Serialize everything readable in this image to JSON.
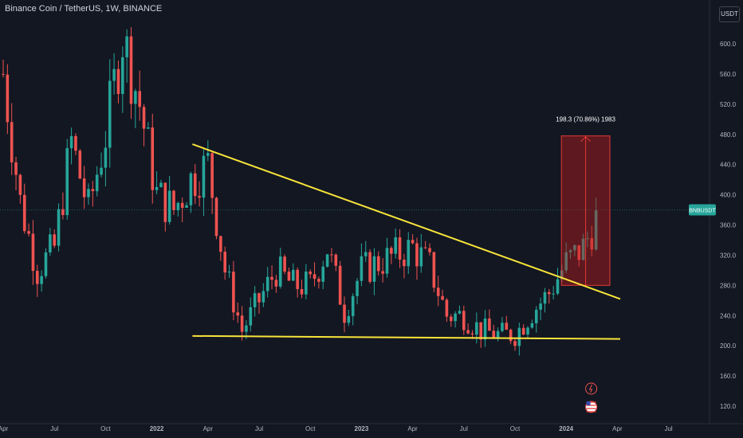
{
  "header": {
    "symbol_title": "Binance Coin / TetherUS, 1W, BINANCE",
    "currency_button": "USDT"
  },
  "price_tag": {
    "label": "BNBUSDT",
    "color": "#26a69a"
  },
  "colors": {
    "background": "#131722",
    "up_candle": "#26a69a",
    "down_candle": "#ef5350",
    "trendline": "#f9e43a",
    "measure_box": "#b71c1c",
    "measure_line": "#e53935"
  },
  "measure": {
    "label": "198.3 (70.86%) 1983",
    "from_price": 280,
    "to_price": 478,
    "from_date": "2024-01",
    "to_date": "2024-03"
  },
  "icons": [
    "flash-icon",
    "us-flag-icon"
  ],
  "chart_data": {
    "type": "candlestick",
    "title": "Binance Coin / TetherUS, 1W, BINANCE",
    "xlabel": "",
    "ylabel": "",
    "ylim": [
      100,
      640
    ],
    "grid": false,
    "y_ticks": [
      600,
      560,
      520,
      480,
      440,
      400,
      360,
      320,
      280,
      240,
      200,
      160,
      120
    ],
    "x_ticks": [
      "Apr",
      "Jul",
      "Oct",
      "2022",
      "Apr",
      "Jul",
      "Oct",
      "2023",
      "Apr",
      "Jul",
      "Oct",
      "2024",
      "Apr",
      "Jul"
    ],
    "x_tick_dates": [
      "2021-04",
      "2021-07",
      "2021-10",
      "2022-01",
      "2022-04",
      "2022-07",
      "2022-10",
      "2023-01",
      "2023-04",
      "2023-07",
      "2023-10",
      "2024-01",
      "2024-04",
      "2024-07"
    ],
    "last_price": 380,
    "weekly_closes": [
      [
        "2021-04",
        560
      ],
      [
        "2021-05",
        390
      ],
      [
        "2021-06",
        300
      ],
      [
        "2021-07",
        330
      ],
      [
        "2021-08",
        470
      ],
      [
        "2021-09",
        380
      ],
      [
        "2021-10",
        480
      ],
      [
        "2021-11",
        610
      ],
      [
        "2021-12",
        520
      ],
      [
        "2022-01",
        400
      ],
      [
        "2022-02",
        380
      ],
      [
        "2022-03",
        420
      ],
      [
        "2022-04",
        440
      ],
      [
        "2022-05",
        300
      ],
      [
        "2022-06",
        220
      ],
      [
        "2022-07",
        260
      ],
      [
        "2022-08",
        300
      ],
      [
        "2022-09",
        280
      ],
      [
        "2022-10",
        280
      ],
      [
        "2022-11",
        330
      ],
      [
        "2022-12",
        245
      ],
      [
        "2023-01",
        300
      ],
      [
        "2023-02",
        310
      ],
      [
        "2023-03",
        320
      ],
      [
        "2023-04",
        330
      ],
      [
        "2023-05",
        305
      ],
      [
        "2023-06",
        240
      ],
      [
        "2023-07",
        240
      ],
      [
        "2023-08",
        220
      ],
      [
        "2023-09",
        215
      ],
      [
        "2023-10",
        215
      ],
      [
        "2023-11",
        245
      ],
      [
        "2023-12",
        270
      ],
      [
        "2024-01",
        310
      ],
      [
        "2024-02",
        330
      ],
      [
        "2024-03",
        380
      ]
    ],
    "trendlines": [
      {
        "name": "",
        "from": [
          "2022-03",
          467
        ],
        "to": [
          "2024-03",
          262
        ]
      },
      {
        "name": "",
        "from": [
          "2022-03",
          213
        ],
        "to": [
          "2024-03",
          209
        ]
      }
    ]
  }
}
